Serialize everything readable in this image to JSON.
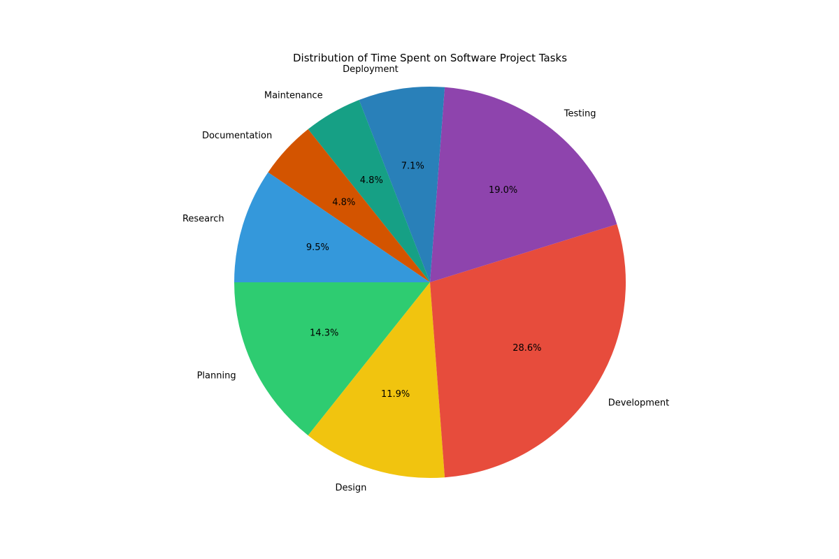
{
  "chart_data": {
    "type": "pie",
    "title": "Distribution of Time Spent on Software Project Tasks",
    "start_angle_deg": 180,
    "direction": "counterclockwise",
    "slices": [
      {
        "label": "Planning",
        "value": 14.3,
        "pct_label": "14.3%",
        "color": "#2ecc71"
      },
      {
        "label": "Design",
        "value": 11.9,
        "pct_label": "11.9%",
        "color": "#f1c40f"
      },
      {
        "label": "Development",
        "value": 28.6,
        "pct_label": "28.6%",
        "color": "#e74c3c"
      },
      {
        "label": "Testing",
        "value": 19.0,
        "pct_label": "19.0%",
        "color": "#8e44ad"
      },
      {
        "label": "Deployment",
        "value": 7.1,
        "pct_label": "7.1%",
        "color": "#2980b9"
      },
      {
        "label": "Maintenance",
        "value": 4.8,
        "pct_label": "4.8%",
        "color": "#16a085"
      },
      {
        "label": "Documentation",
        "value": 4.8,
        "pct_label": "4.8%",
        "color": "#d35400"
      },
      {
        "label": "Research",
        "value": 9.5,
        "pct_label": "9.5%",
        "color": "#3498db"
      }
    ]
  }
}
